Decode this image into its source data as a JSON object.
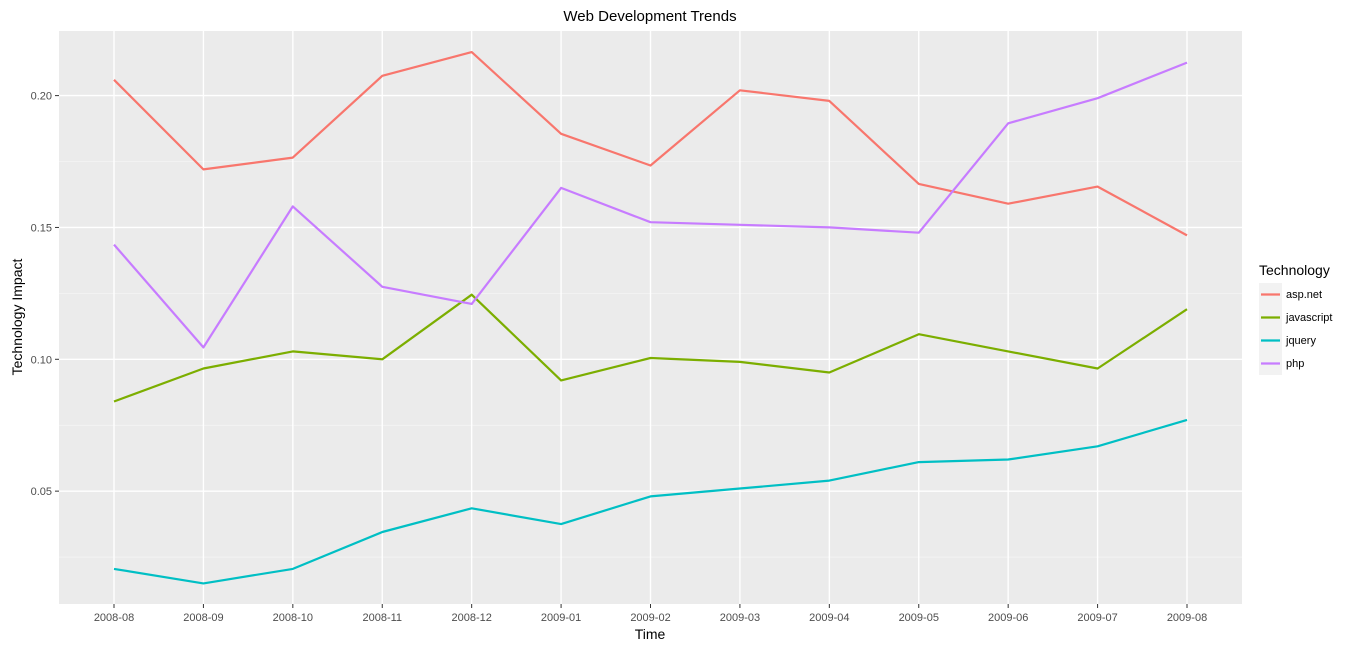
{
  "chart_data": {
    "type": "line",
    "title": "Web Development Trends",
    "xlabel": "Time",
    "ylabel": "Technology Impact",
    "categories": [
      "2008-08",
      "2008-09",
      "2008-10",
      "2008-11",
      "2008-12",
      "2009-01",
      "2009-02",
      "2009-03",
      "2009-04",
      "2009-05",
      "2009-06",
      "2009-07",
      "2009-08"
    ],
    "ylim": [
      0.0072,
      0.2245
    ],
    "yticks": [
      0.05,
      0.1,
      0.15,
      0.2
    ],
    "ytick_labels": [
      "0.05",
      "0.10",
      "0.15",
      "0.20"
    ],
    "grid": true,
    "legend": {
      "title": "Technology",
      "position": "right"
    },
    "series": [
      {
        "name": "asp.net",
        "color": "#F8766D",
        "values": [
          0.206,
          0.172,
          0.1765,
          0.2075,
          0.2165,
          0.1855,
          0.1735,
          0.202,
          0.198,
          0.1665,
          0.159,
          0.1655,
          0.147
        ]
      },
      {
        "name": "javascript",
        "color": "#7CAE00",
        "values": [
          0.084,
          0.0965,
          0.103,
          0.1,
          0.1245,
          0.092,
          0.1005,
          0.099,
          0.095,
          0.1095,
          0.103,
          0.0965,
          0.119
        ]
      },
      {
        "name": "jquery",
        "color": "#00BFC4",
        "values": [
          0.0205,
          0.015,
          0.0205,
          0.0345,
          0.0435,
          0.0375,
          0.048,
          0.051,
          0.054,
          0.061,
          0.062,
          0.067,
          0.077
        ]
      },
      {
        "name": "php",
        "color": "#C77CFF",
        "values": [
          0.1435,
          0.1045,
          0.158,
          0.1275,
          0.121,
          0.165,
          0.152,
          0.151,
          0.15,
          0.148,
          0.1895,
          0.199,
          0.2125
        ]
      }
    ]
  }
}
